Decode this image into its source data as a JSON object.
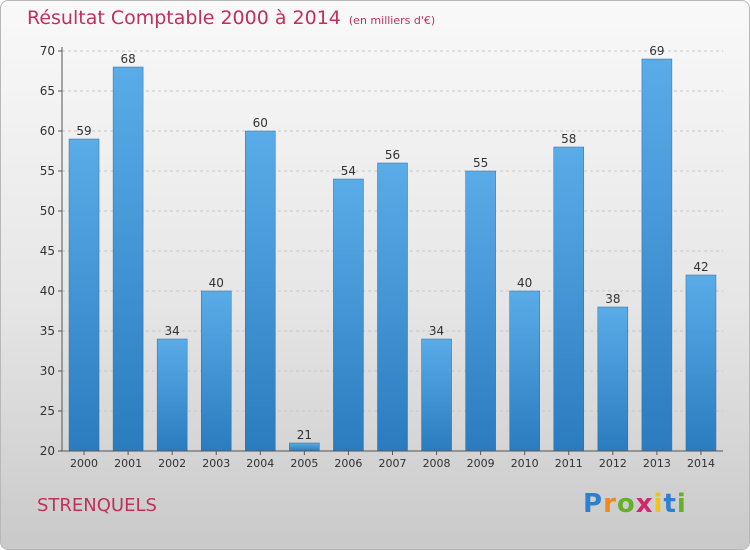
{
  "title": "Résultat Comptable 2000 à 2014",
  "subtitle": "(en milliers d'€)",
  "commune": "STRENQUELS",
  "logo": {
    "parts": [
      "P",
      "r",
      "o",
      "x",
      "i",
      "t",
      "i"
    ]
  },
  "colors": {
    "bar_light": "#5aace8",
    "bar_dark": "#2a7cbf",
    "accent": "#c0305a"
  },
  "chart_data": {
    "type": "bar",
    "categories": [
      "2000",
      "2001",
      "2002",
      "2003",
      "2004",
      "2005",
      "2006",
      "2007",
      "2008",
      "2009",
      "2010",
      "2011",
      "2012",
      "2013",
      "2014"
    ],
    "values": [
      59,
      68,
      34,
      40,
      60,
      21,
      54,
      56,
      34,
      55,
      40,
      58,
      38,
      69,
      42
    ],
    "ylim": [
      20,
      70
    ],
    "yticks": [
      20,
      25,
      30,
      35,
      40,
      45,
      50,
      55,
      60,
      65,
      70
    ],
    "grid": true,
    "data_labels": true
  }
}
